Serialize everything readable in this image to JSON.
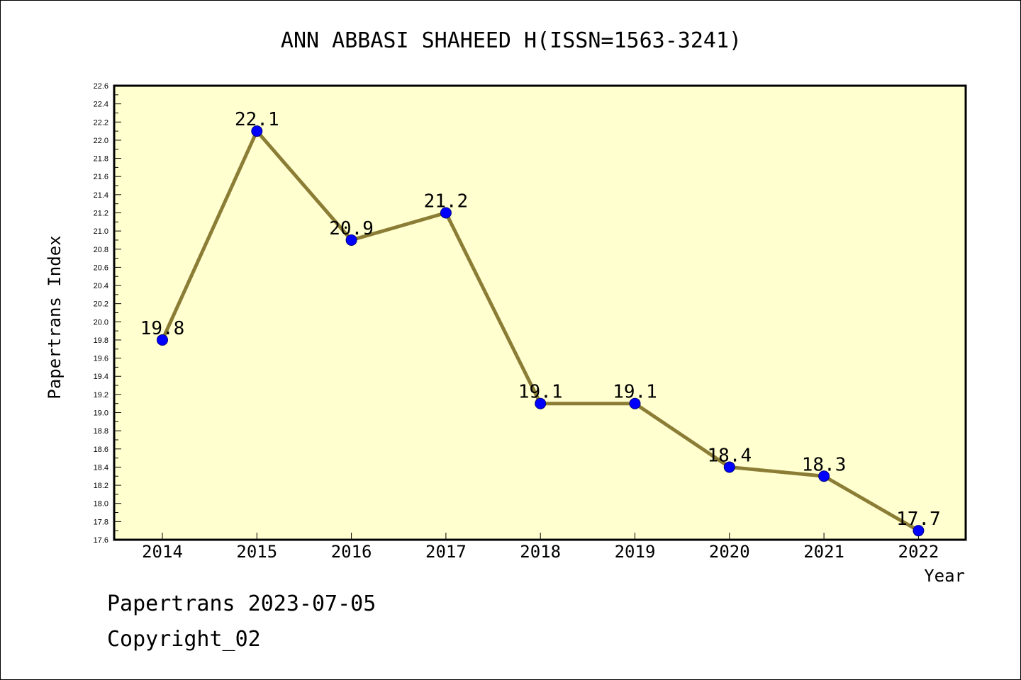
{
  "chart_data": {
    "type": "line",
    "title": "ANN ABBASI SHAHEED H(ISSN=1563-3241)",
    "xlabel": "Year",
    "ylabel": "Papertrans Index",
    "categories": [
      "2014",
      "2015",
      "2016",
      "2017",
      "2018",
      "2019",
      "2020",
      "2021",
      "2022"
    ],
    "series": [
      {
        "values": [
          19.8,
          22.1,
          20.9,
          21.2,
          19.1,
          19.1,
          18.4,
          18.3,
          17.7
        ],
        "data_labels": [
          "19.8",
          "22.1",
          "20.9",
          "21.2",
          "19.1",
          "19.1",
          "18.4",
          "18.3",
          "17.7"
        ]
      }
    ],
    "ylim": [
      17.6,
      22.6
    ],
    "y_major_ticks": [
      "17.6",
      "17.8",
      "18.0",
      "18.2",
      "18.4",
      "18.6",
      "18.8",
      "19.0",
      "19.2",
      "19.4",
      "19.6",
      "19.8",
      "20.0",
      "20.2",
      "20.4",
      "20.6",
      "20.8",
      "21.0",
      "21.2",
      "21.4",
      "21.6",
      "21.8",
      "22.0",
      "22.2",
      "22.4",
      "22.6"
    ],
    "grid": false,
    "legend": "none",
    "colors": {
      "plot_background": "#ffffd0",
      "line": "#8b7d35",
      "marker": "#0000ff",
      "frame": "#000000"
    }
  },
  "footer": {
    "line1": "Papertrans 2023-07-05",
    "line2": "Copyright_02"
  }
}
